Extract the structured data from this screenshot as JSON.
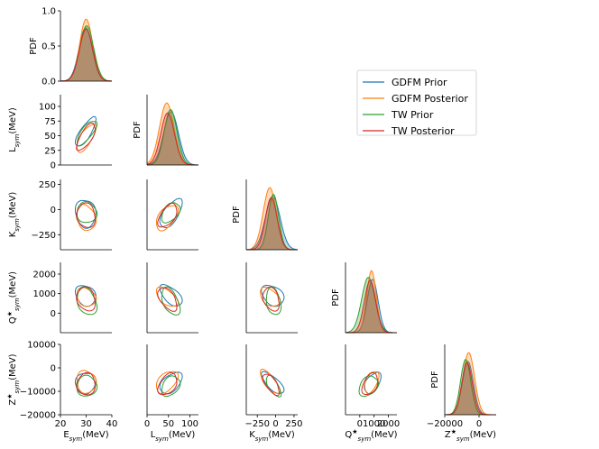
{
  "chart_data": {
    "type": "corner",
    "params": [
      {
        "key": "Esym",
        "label_base": "E",
        "label_sub": "sym",
        "label_star": false,
        "unit": "(MeV)",
        "range": [
          20,
          40
        ],
        "ticks": [
          20,
          30,
          40
        ],
        "tick_labels": [
          "20",
          "30",
          "40"
        ]
      },
      {
        "key": "Lsym",
        "label_base": "L",
        "label_sub": "sym",
        "label_star": false,
        "unit": "(MeV)",
        "range": [
          0,
          120
        ],
        "ticks": [
          0,
          50,
          100
        ],
        "tick_labels": [
          "0",
          "50",
          "100"
        ],
        "y_ticks": [
          0,
          25,
          50,
          75,
          100
        ],
        "y_tick_labels": [
          "0",
          "25",
          "50",
          "75",
          "100"
        ]
      },
      {
        "key": "Ksym",
        "label_base": "K",
        "label_sub": "sym",
        "label_star": false,
        "unit": "(MeV)",
        "range": [
          -400,
          300
        ],
        "ticks": [
          -250,
          0,
          250
        ],
        "tick_labels": [
          "−250",
          "0",
          "250"
        ],
        "y_ticks": [
          -250,
          0,
          250
        ],
        "y_tick_labels": [
          "−250",
          "0",
          "250"
        ]
      },
      {
        "key": "Qsym",
        "label_base": "Q",
        "label_sub": "sym",
        "label_star": true,
        "unit": "(MeV)",
        "range": [
          -1000,
          2600
        ],
        "ticks": [
          0,
          1000,
          2000
        ],
        "tick_labels": [
          "0",
          "1000",
          "2000"
        ],
        "y_ticks": [
          0,
          1000,
          2000
        ],
        "y_tick_labels": [
          "0",
          "1000",
          "2000"
        ]
      },
      {
        "key": "Zsym",
        "label_base": "Z",
        "label_sub": "sym",
        "label_star": true,
        "unit": "(MeV)",
        "range": [
          -20000,
          10000
        ],
        "ticks": [
          -20000,
          0
        ],
        "tick_labels": [
          "−20000",
          "0"
        ],
        "y_ticks": [
          -20000,
          -10000,
          0,
          10000
        ],
        "y_tick_labels": [
          "−20000",
          "−10000",
          "0",
          "10000"
        ]
      }
    ],
    "pdf_label": "PDF",
    "first_pdf_axis": {
      "range": [
        0,
        1.0
      ],
      "ticks": [
        0,
        0.5,
        1.0
      ],
      "tick_labels": [
        "0.0",
        "0.5",
        "1.0"
      ]
    },
    "series": [
      {
        "name": "GDFM Prior",
        "color": "#1f77b4",
        "mean": [
          29.8,
          56,
          -40,
          900,
          -6500
        ],
        "sd": [
          2.6,
          17,
          100,
          380,
          3200
        ],
        "peak": 0.8
      },
      {
        "name": "GDFM Posterior",
        "color": "#ff7f0e",
        "mean": [
          30.0,
          46,
          -80,
          820,
          -6000
        ],
        "sd": [
          2.5,
          17,
          90,
          330,
          3400
        ],
        "peak": 0.93
      },
      {
        "name": "TW Prior",
        "color": "#2ca02c",
        "mean": [
          30.2,
          55,
          -30,
          600,
          -7800
        ],
        "sd": [
          2.7,
          15,
          70,
          470,
          3000
        ],
        "peak": 0.83
      },
      {
        "name": "TW Posterior",
        "color": "#d62728",
        "mean": [
          30.0,
          48,
          -60,
          720,
          -7000
        ],
        "sd": [
          2.6,
          16,
          80,
          400,
          3100
        ],
        "peak": 0.78
      }
    ],
    "correlations": {
      "Lsym_Esym": [
        0.75,
        0.72,
        0.78,
        0.74
      ],
      "Ksym_Esym": [
        -0.1,
        -0.15,
        0.05,
        -0.1
      ],
      "Ksym_Lsym": [
        0.6,
        0.55,
        0.5,
        0.58
      ],
      "Qsym_Esym": [
        -0.2,
        -0.15,
        -0.25,
        -0.2
      ],
      "Qsym_Lsym": [
        -0.55,
        -0.5,
        -0.45,
        -0.55
      ],
      "Qsym_Ksym": [
        -0.3,
        -0.35,
        -0.2,
        -0.3
      ],
      "Zsym_Esym": [
        0.05,
        0.0,
        0.1,
        0.05
      ],
      "Zsym_Lsym": [
        0.45,
        0.5,
        0.4,
        0.45
      ],
      "Zsym_Ksym": [
        -0.7,
        -0.72,
        -0.65,
        -0.7
      ],
      "Zsym_Qsym": [
        0.45,
        0.5,
        0.4,
        0.45
      ]
    },
    "legend_position": "top-right"
  }
}
